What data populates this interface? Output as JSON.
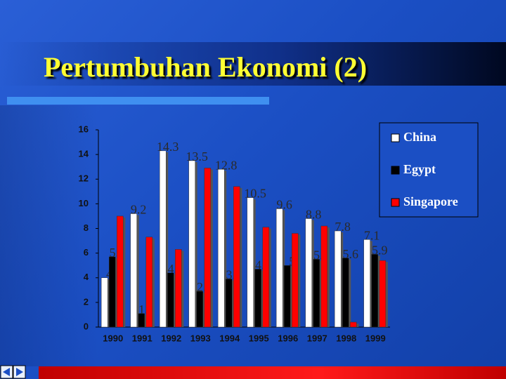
{
  "chart_data": {
    "type": "bar",
    "title": "Pertumbuhan Ekonomi (2)",
    "categories": [
      "1990",
      "1991",
      "1992",
      "1993",
      "1994",
      "1995",
      "1996",
      "1997",
      "1998",
      "1999"
    ],
    "series": [
      {
        "name": "China",
        "color": "#ffffff",
        "data_labels": true,
        "values": [
          4,
          9.2,
          14.3,
          13.5,
          12.8,
          10.5,
          9.6,
          8.8,
          7.8,
          7.1
        ]
      },
      {
        "name": "Egypt",
        "color": "#000000",
        "data_labels": true,
        "values": [
          5.7,
          1.1,
          4.4,
          2.9,
          3.9,
          4.7,
          5,
          5.5,
          5.6,
          5.9
        ]
      },
      {
        "name": "Singapore",
        "color": "#ff0000",
        "data_labels": false,
        "values": [
          9,
          7.3,
          6.3,
          12.9,
          11.4,
          8.1,
          7.6,
          8.2,
          0.4,
          5.4
        ]
      }
    ],
    "ylim": [
      0,
      16
    ],
    "yticks": [
      0,
      2,
      4,
      6,
      8,
      10,
      12,
      14,
      16
    ],
    "legend": "right"
  }
}
